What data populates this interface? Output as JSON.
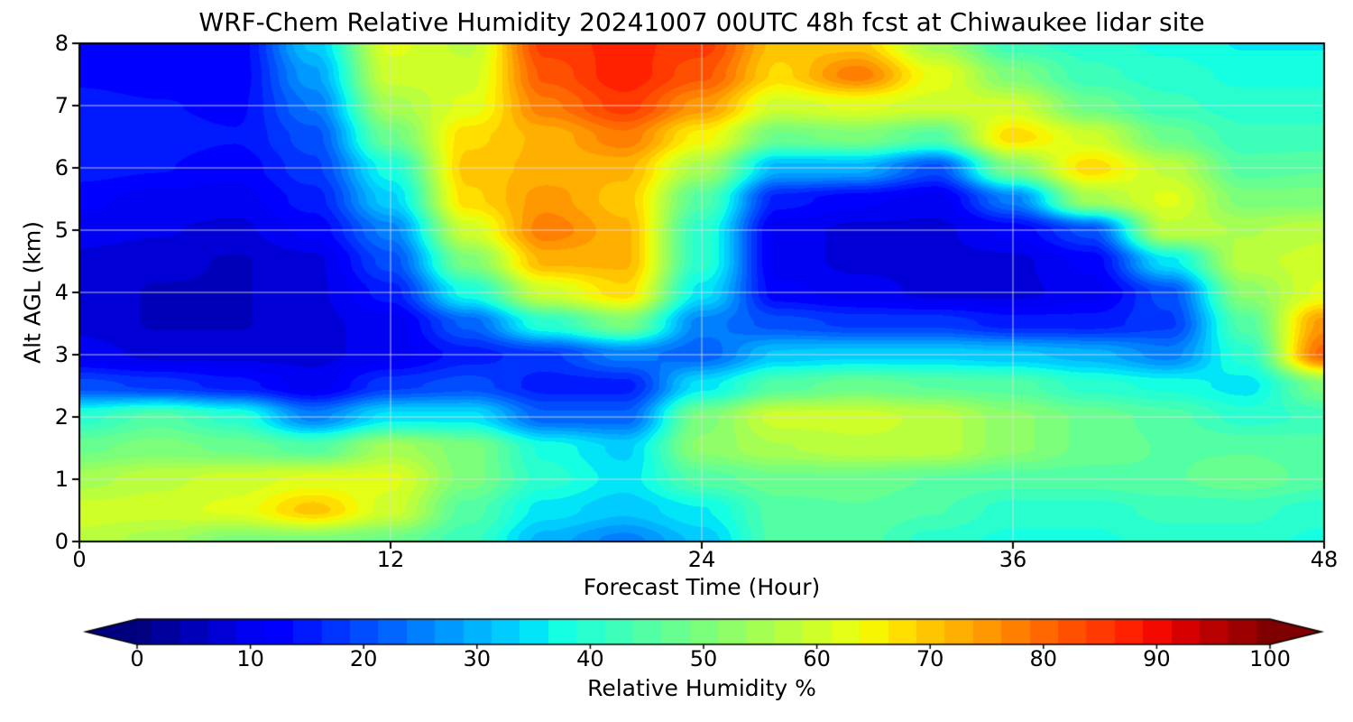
{
  "chart_data": {
    "type": "heatmap",
    "title": "WRF-Chem Relative Humidity 20241007 00UTC 48h fcst at Chiwaukee lidar site",
    "xlabel": "Forecast Time (Hour)",
    "ylabel": "Alt AGL (km)",
    "xlim": [
      0,
      48
    ],
    "ylim": [
      0,
      8
    ],
    "x_ticks": [
      0,
      12,
      24,
      36,
      48
    ],
    "y_ticks": [
      0,
      1,
      2,
      3,
      4,
      5,
      6,
      7,
      8
    ],
    "grid": true,
    "gridline_color": "#dcdcdc",
    "colormap": "jet",
    "colorbar": {
      "label": "Relative Humidity %",
      "ticks": [
        0,
        10,
        20,
        30,
        40,
        50,
        60,
        70,
        80,
        90,
        100
      ],
      "vmin": 0,
      "vmax": 100,
      "extend": "both",
      "under_color": "#00007f",
      "over_color": "#7f0000"
    },
    "x_hours": [
      0,
      3,
      6,
      9,
      12,
      15,
      18,
      21,
      24,
      27,
      30,
      33,
      36,
      39,
      42,
      45,
      48
    ],
    "alt_km": [
      0,
      0.5,
      1,
      1.5,
      2,
      2.5,
      3,
      3.5,
      4,
      4.5,
      5,
      5.5,
      6,
      6.5,
      7,
      7.5,
      8
    ],
    "values_rh_percent": [
      [
        58,
        55,
        50,
        50,
        48,
        42,
        30,
        25,
        32,
        45,
        45,
        40,
        38,
        38,
        40,
        40,
        38
      ],
      [
        60,
        60,
        62,
        70,
        60,
        45,
        35,
        32,
        36,
        45,
        46,
        44,
        40,
        40,
        42,
        42,
        40
      ],
      [
        55,
        58,
        60,
        62,
        62,
        50,
        40,
        35,
        45,
        48,
        48,
        46,
        45,
        45,
        46,
        48,
        45
      ],
      [
        48,
        50,
        48,
        45,
        55,
        50,
        38,
        33,
        52,
        56,
        58,
        58,
        52,
        48,
        46,
        46,
        45
      ],
      [
        40,
        45,
        40,
        25,
        35,
        35,
        22,
        22,
        50,
        60,
        60,
        58,
        52,
        48,
        45,
        40,
        42
      ],
      [
        20,
        18,
        15,
        10,
        18,
        20,
        15,
        15,
        35,
        45,
        48,
        46,
        45,
        40,
        38,
        35,
        50
      ],
      [
        10,
        8,
        8,
        8,
        10,
        15,
        18,
        25,
        22,
        32,
        33,
        33,
        32,
        30,
        25,
        40,
        80
      ],
      [
        8,
        6,
        6,
        8,
        10,
        22,
        40,
        50,
        25,
        20,
        18,
        18,
        15,
        15,
        18,
        45,
        75
      ],
      [
        8,
        6,
        6,
        8,
        15,
        38,
        60,
        68,
        35,
        12,
        10,
        8,
        8,
        10,
        20,
        52,
        62
      ],
      [
        8,
        7,
        6,
        8,
        20,
        50,
        72,
        72,
        40,
        10,
        8,
        8,
        8,
        12,
        35,
        58,
        60
      ],
      [
        10,
        9,
        8,
        12,
        25,
        60,
        78,
        72,
        40,
        10,
        8,
        8,
        12,
        20,
        58,
        56,
        58
      ],
      [
        12,
        10,
        10,
        15,
        33,
        68,
        75,
        70,
        45,
        15,
        12,
        10,
        25,
        55,
        62,
        50,
        50
      ],
      [
        15,
        14,
        12,
        18,
        38,
        70,
        72,
        72,
        55,
        30,
        30,
        20,
        50,
        68,
        58,
        45,
        46
      ],
      [
        15,
        15,
        14,
        20,
        48,
        68,
        72,
        78,
        65,
        48,
        50,
        45,
        68,
        60,
        48,
        42,
        42
      ],
      [
        15,
        14,
        13,
        24,
        55,
        62,
        78,
        85,
        75,
        60,
        62,
        60,
        60,
        48,
        42,
        40,
        40
      ],
      [
        13,
        12,
        12,
        28,
        60,
        60,
        82,
        88,
        82,
        68,
        78,
        63,
        50,
        42,
        40,
        38,
        38
      ],
      [
        12,
        12,
        12,
        32,
        62,
        58,
        85,
        87,
        85,
        70,
        70,
        55,
        42,
        40,
        38,
        36,
        36
      ]
    ]
  }
}
